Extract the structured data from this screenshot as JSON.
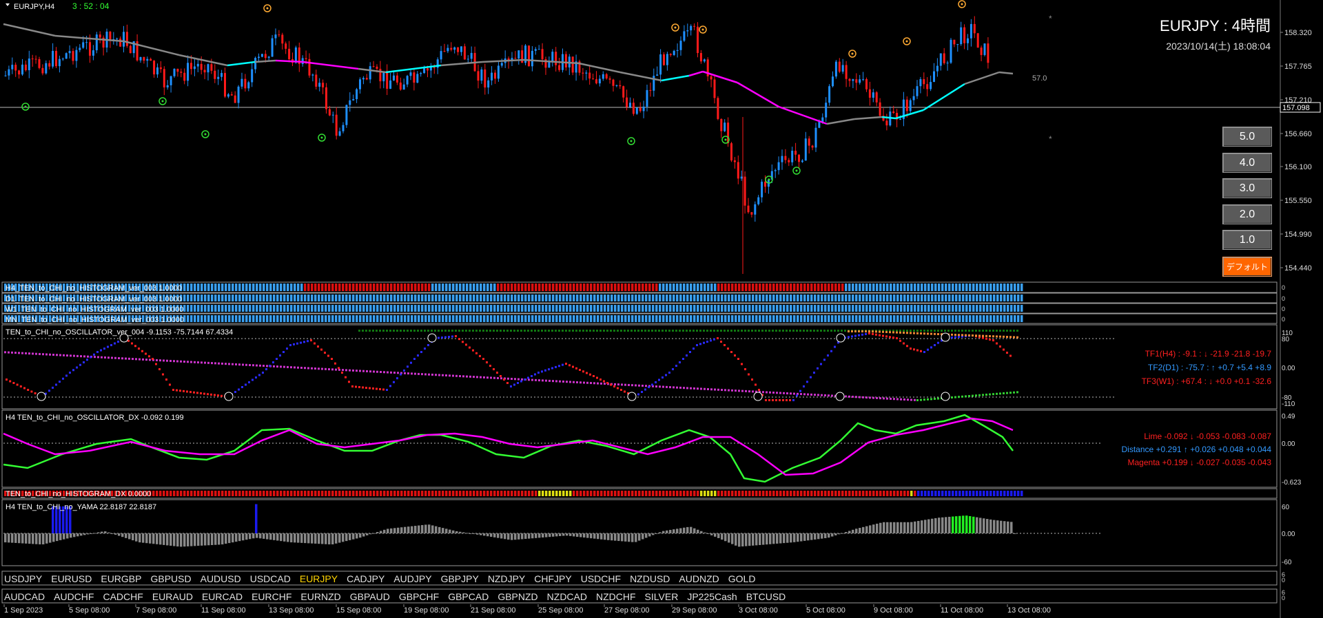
{
  "header": {
    "symbol_label": "EURJPY,H4",
    "timer": "3 : 52 : 04",
    "title": "EURJPY : 4時間",
    "datetime": "2023/10/14(土) 18:08:04",
    "level_label": "57.0",
    "current_price": "157.098"
  },
  "price_axis": {
    "ticks": [
      "158.320",
      "157.765",
      "157.210",
      "156.660",
      "156.100",
      "155.550",
      "154.990",
      "154.440"
    ]
  },
  "side_buttons": {
    "b1": "5.0",
    "b2": "4.0",
    "b3": "3.0",
    "b4": "2.0",
    "b5": "1.0",
    "default": "デフォルト"
  },
  "histograms": {
    "h4": "H4_TEN_to_CHI_no_HISTOGRAM_ver_003 1.0000",
    "d1": "D1_TEN_to_CHI_no_HISTOGRAM_ver_003 1.0000",
    "w1": "W1_TEN_to_CHI_no_HISTOGRAM_ver_003 1.0000",
    "mn": "MN_TEN_to_CHI_no_HISTOGRAM_ver_003 1.0000"
  },
  "oscillator": {
    "label": "TEN_to_CHI_no_OSCILLATOR_ver_004 -9.1153 -75.7144 67.4334",
    "ticks": [
      "110",
      "80",
      "0.00",
      "-80",
      "-110"
    ],
    "tf1": "TF1(H4) : -9.1 : ↓ -21.9 -21.8 -19.7",
    "tf2": "TF2(D1) : -75.7 : ↑ +0.7 +5.4 +8.9",
    "tf3": "TF3(W1) : +67.4 : ↓ +0.0 +0.1 -32.6"
  },
  "dx": {
    "label": "H4 TEN_to_CHI_no_OSCILLATOR_DX -0.092 0.199",
    "ticks": [
      "0.49",
      "0.00",
      "-0.623"
    ],
    "lime": "Lime -0.092 ↓ -0.053 -0.083 -0.087",
    "distance": "Distance +0.291 ↑ +0.026 +0.048 +0.044",
    "magenta": "Magenta +0.199 ↓ -0.027 -0.035 -0.043"
  },
  "hist_dx": {
    "label": "TEN_to_CHI_no_HISTOGRAM_DX 0.0000"
  },
  "yama": {
    "label": "H4 TEN_to_CHI_no_YAMA 22.8187 22.8187",
    "ticks": [
      "60",
      "0.00",
      "-60"
    ]
  },
  "symbols_row1": [
    "USDJPY",
    "EURUSD",
    "EURGBP",
    "GBPUSD",
    "AUDUSD",
    "USDCAD",
    "EURJPY",
    "CADJPY",
    "AUDJPY",
    "GBPJPY",
    "NZDJPY",
    "CHFJPY",
    "USDCHF",
    "NZDUSD",
    "AUDNZD",
    "GOLD"
  ],
  "symbols_row2": [
    "AUDCAD",
    "AUDCHF",
    "CADCHF",
    "EURAUD",
    "EURCAD",
    "EURCHF",
    "EURNZD",
    "GBPAUD",
    "GBPCHF",
    "GBPCAD",
    "GBPNZD",
    "NZDCAD",
    "NZDCHF",
    "SILVER",
    "JP225Cash",
    "BTCUSD"
  ],
  "active_symbol": "EURJPY",
  "time_axis": [
    "1 Sep 2023",
    "5 Sep 08:00",
    "7 Sep 08:00",
    "11 Sep 08:00",
    "13 Sep 08:00",
    "15 Sep 08:00",
    "19 Sep 08:00",
    "21 Sep 08:00",
    "25 Sep 08:00",
    "27 Sep 08:00",
    "29 Sep 08:00",
    "3 Oct 08:00",
    "5 Oct 08:00",
    "9 Oct 08:00",
    "11 Oct 08:00",
    "13 Oct 08:00"
  ],
  "colors": {
    "bull": "#1e90ff",
    "bear": "#ff1a1a",
    "ma_down": "#ff00ff",
    "ma_flat": "#888888",
    "ma_up": "#00ffff",
    "lime": "#33ff33",
    "active_symbol": "#ffd400"
  }
}
